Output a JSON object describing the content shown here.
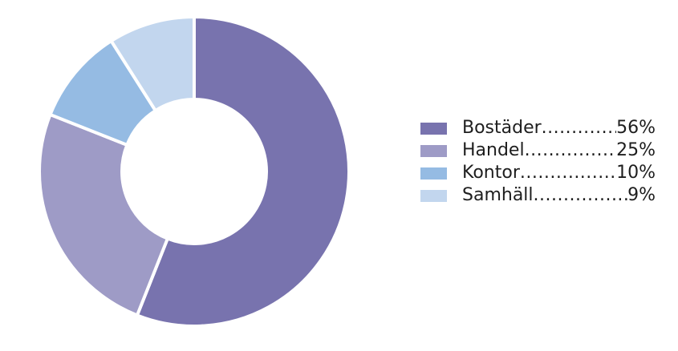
{
  "chart_data": {
    "type": "pie",
    "categories": [
      "Bostäder",
      "Handel",
      "Kontor",
      "Samhäll"
    ],
    "values": [
      56,
      25,
      10,
      9
    ],
    "value_labels": [
      "56%",
      "25%",
      "10%",
      "9%"
    ],
    "colors": [
      "#7873ae",
      "#9e9bc6",
      "#95bbe3",
      "#c2d6ee"
    ],
    "legend": "right"
  }
}
